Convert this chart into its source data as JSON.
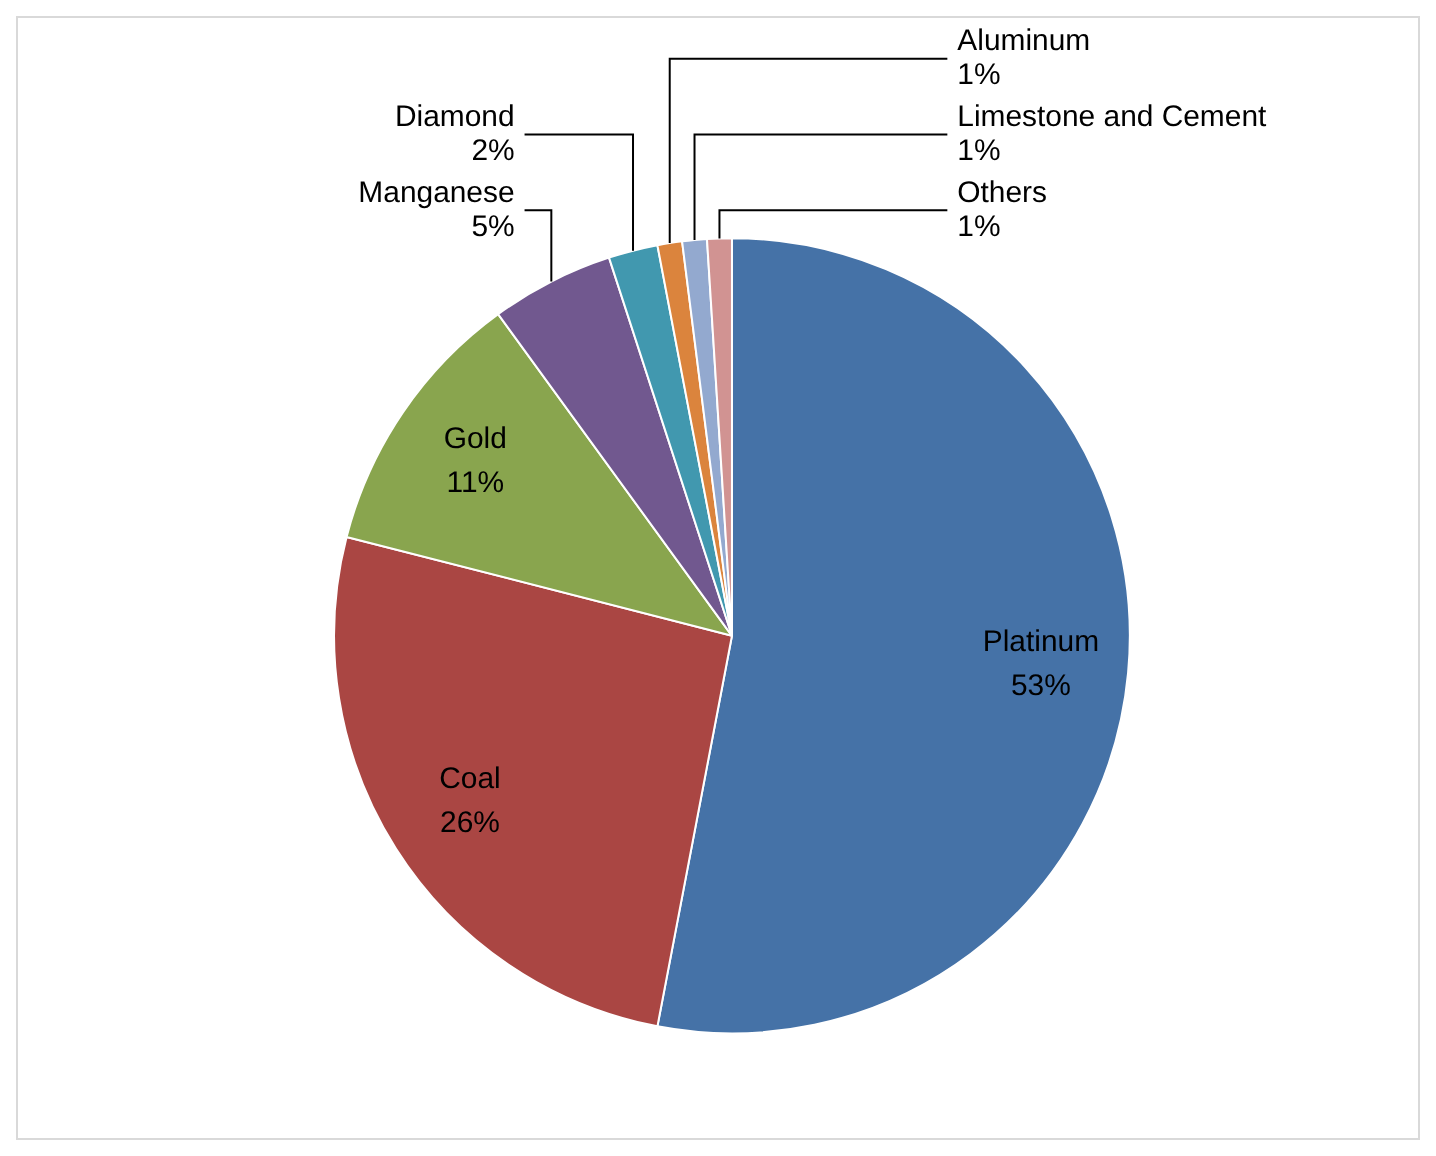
{
  "chart_data": {
    "type": "pie",
    "categories": [
      "Platinum",
      "Coal",
      "Gold",
      "Manganese",
      "Diamond",
      "Aluminum",
      "Limestone and Cement",
      "Others"
    ],
    "values": [
      53,
      26,
      11,
      5,
      2,
      1,
      1,
      1
    ],
    "value_labels": [
      "53%",
      "26%",
      "11%",
      "5%",
      "2%",
      "1%",
      "1%",
      "1%"
    ],
    "colors": [
      "#4572a7",
      "#aa4643",
      "#89a54e",
      "#71588f",
      "#4198af",
      "#db843d",
      "#93a9cf",
      "#d19392"
    ],
    "legend": false
  }
}
